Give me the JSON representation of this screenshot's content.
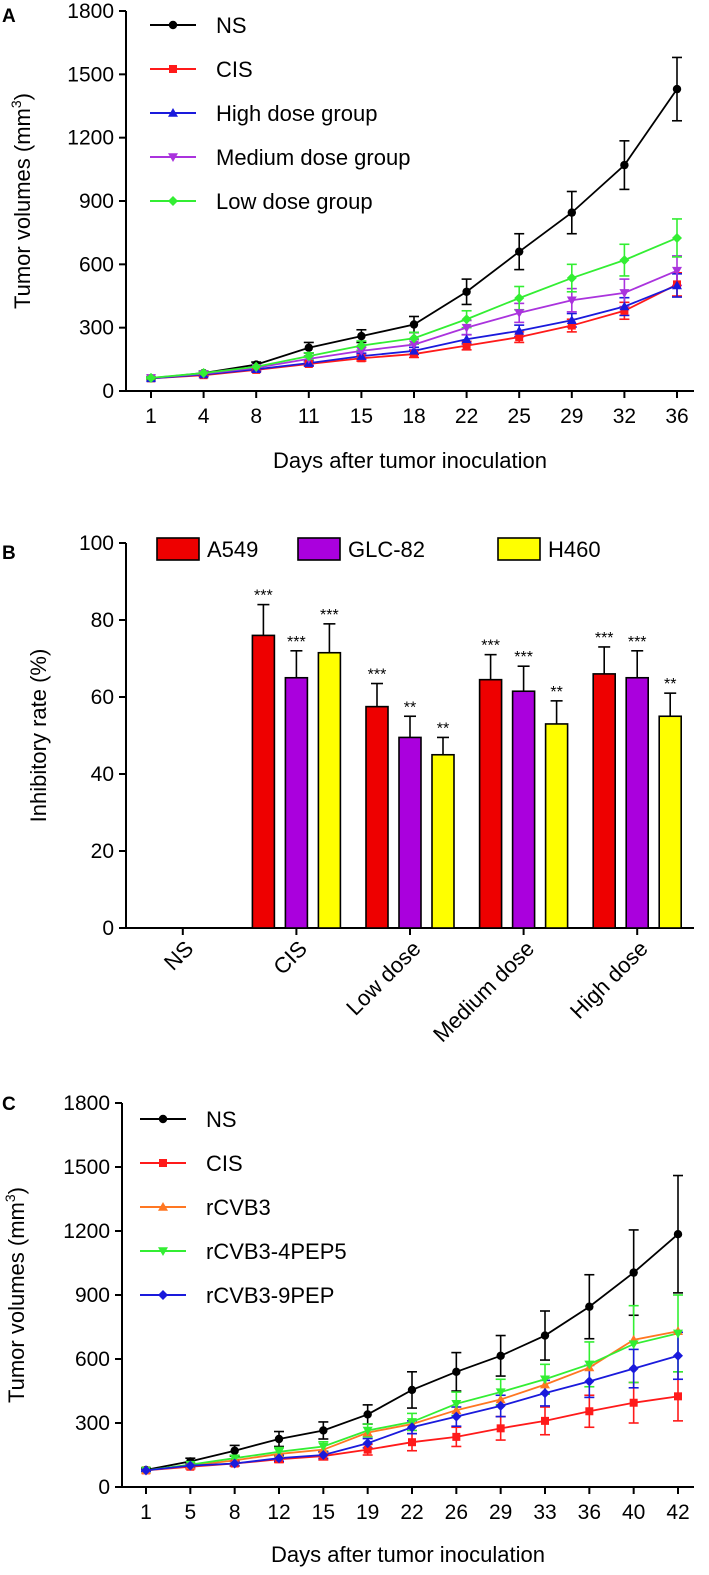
{
  "chart_data": [
    {
      "panel": "A",
      "type": "line",
      "title": "",
      "xlabel": "Days after tumor inoculation",
      "ylabel": "Tumor volumes (mm",
      "ylabel_sup": "3",
      "ylabel_close": ")",
      "x": [
        1,
        4,
        8,
        11,
        15,
        18,
        22,
        25,
        29,
        32,
        36
      ],
      "ylim": [
        0,
        1800
      ],
      "yticks": [
        0,
        300,
        600,
        900,
        1200,
        1500,
        1800
      ],
      "legend_position": "top-left",
      "series": [
        {
          "name": "NS",
          "color": "#000000",
          "marker": "circle",
          "values": [
            60,
            85,
            125,
            205,
            260,
            315,
            470,
            660,
            845,
            1070,
            1430
          ],
          "errors": [
            6,
            8,
            12,
            25,
            30,
            38,
            60,
            85,
            100,
            115,
            150
          ]
        },
        {
          "name": "CIS",
          "color": "#ff1a1a",
          "marker": "square",
          "values": [
            60,
            75,
            100,
            128,
            155,
            175,
            215,
            255,
            310,
            380,
            505
          ],
          "errors": [
            5,
            6,
            8,
            10,
            13,
            16,
            20,
            25,
            30,
            40,
            55
          ]
        },
        {
          "name": "High dose group",
          "color": "#1a1adc",
          "marker": "triangle-up",
          "values": [
            60,
            78,
            103,
            132,
            165,
            190,
            245,
            285,
            335,
            400,
            500
          ],
          "errors": [
            5,
            6,
            8,
            11,
            14,
            17,
            22,
            27,
            32,
            42,
            55
          ]
        },
        {
          "name": "Medium dose group",
          "color": "#aa33dd",
          "marker": "triangle-down",
          "values": [
            62,
            82,
            110,
            152,
            190,
            220,
            300,
            370,
            430,
            465,
            570
          ],
          "errors": [
            6,
            7,
            10,
            14,
            18,
            24,
            34,
            45,
            55,
            65,
            70
          ]
        },
        {
          "name": "Low dose group",
          "color": "#33ee33",
          "marker": "diamond",
          "values": [
            62,
            85,
            115,
            165,
            215,
            250,
            340,
            440,
            535,
            620,
            725
          ],
          "errors": [
            6,
            8,
            11,
            16,
            22,
            28,
            40,
            55,
            65,
            75,
            90
          ]
        }
      ]
    },
    {
      "panel": "B",
      "type": "bar",
      "title": "",
      "xlabel": "",
      "ylabel": "Inhibitory rate (%)",
      "categories": [
        "NS",
        "CIS",
        "Low dose",
        "Medium dose",
        "High dose"
      ],
      "ylim": [
        0,
        100
      ],
      "yticks": [
        0,
        20,
        40,
        60,
        80,
        100
      ],
      "legend_position": "top",
      "series": [
        {
          "name": "A549",
          "color": "#ee0000",
          "values": [
            0,
            76,
            57.5,
            64.5,
            66
          ],
          "errors": [
            0,
            8,
            6,
            6.5,
            7
          ],
          "labels": [
            "",
            "***",
            "***",
            "***",
            "***"
          ]
        },
        {
          "name": "GLC-82",
          "color": "#aa00dd",
          "values": [
            0,
            65,
            49.5,
            61.5,
            65
          ],
          "errors": [
            0,
            7,
            5.5,
            6.5,
            7
          ],
          "labels": [
            "",
            "***",
            "**",
            "***",
            "***"
          ]
        },
        {
          "name": "H460",
          "color": "#ffff00",
          "values": [
            0,
            71.5,
            45,
            53,
            55
          ],
          "errors": [
            0,
            7.5,
            4.5,
            6,
            6
          ],
          "labels": [
            "",
            "***",
            "**",
            "**",
            "**"
          ]
        }
      ]
    },
    {
      "panel": "C",
      "type": "line",
      "title": "",
      "xlabel": "Days after tumor inoculation",
      "ylabel": "Tumor volumes (mm",
      "ylabel_sup": "3",
      "ylabel_close": ")",
      "x": [
        1,
        5,
        8,
        12,
        15,
        19,
        22,
        26,
        29,
        33,
        36,
        40,
        42
      ],
      "ylim": [
        0,
        1800
      ],
      "yticks": [
        0,
        300,
        600,
        900,
        1200,
        1500,
        1800
      ],
      "legend_position": "top-left",
      "series": [
        {
          "name": "NS",
          "color": "#000000",
          "marker": "circle",
          "values": [
            80,
            120,
            170,
            225,
            265,
            340,
            455,
            540,
            615,
            710,
            845,
            1005,
            1185
          ],
          "errors": [
            8,
            15,
            25,
            35,
            40,
            45,
            85,
            90,
            95,
            115,
            150,
            200,
            275
          ]
        },
        {
          "name": "CIS",
          "color": "#ff1a1a",
          "marker": "square",
          "values": [
            78,
            95,
            110,
            130,
            145,
            175,
            210,
            235,
            275,
            310,
            355,
            395,
            425
          ],
          "errors": [
            6,
            10,
            12,
            15,
            18,
            25,
            40,
            45,
            55,
            65,
            75,
            95,
            115
          ]
        },
        {
          "name": "rCVB3",
          "color": "#ff7722",
          "marker": "triangle-up",
          "values": [
            78,
            100,
            125,
            155,
            175,
            255,
            295,
            360,
            410,
            480,
            560,
            690,
            730
          ]
        },
        {
          "name": "rCVB3-4PEP5",
          "color": "#33ee33",
          "marker": "triangle-down",
          "values": [
            78,
            105,
            135,
            165,
            190,
            265,
            305,
            390,
            445,
            505,
            575,
            670,
            720
          ],
          "errors": [
            6,
            10,
            14,
            20,
            22,
            30,
            40,
            55,
            60,
            70,
            105,
            180,
            180
          ]
        },
        {
          "name": "rCVB3-9PEP",
          "color": "#1a1adc",
          "marker": "diamond",
          "values": [
            78,
            100,
            110,
            135,
            150,
            205,
            280,
            330,
            380,
            440,
            495,
            555,
            615
          ],
          "errors": [
            5,
            8,
            10,
            14,
            16,
            22,
            30,
            45,
            50,
            60,
            75,
            90,
            110
          ]
        }
      ]
    }
  ]
}
